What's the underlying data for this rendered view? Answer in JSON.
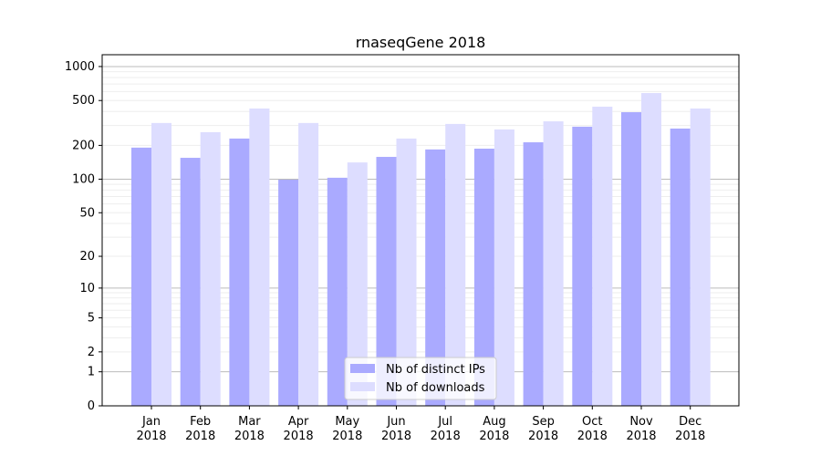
{
  "chart_data": {
    "type": "bar",
    "title": "rnaseqGene 2018",
    "xlabel": "",
    "ylabel": "",
    "yscale": "symlog",
    "ylim": [
      0,
      1300
    ],
    "yticks": [
      0,
      1,
      2,
      5,
      10,
      20,
      50,
      100,
      200,
      500,
      1000
    ],
    "grid": true,
    "legend_position": "bottom-center",
    "categories": [
      "Jan\n2018",
      "Feb\n2018",
      "Mar\n2018",
      "Apr\n2018",
      "May\n2018",
      "Jun\n2018",
      "Jul\n2018",
      "Aug\n2018",
      "Sep\n2018",
      "Oct\n2018",
      "Nov\n2018",
      "Dec\n2018"
    ],
    "series": [
      {
        "name": "Nb of distinct IPs",
        "color": "#aaaaff",
        "values": [
          191,
          155,
          230,
          99,
          103,
          158,
          184,
          187,
          213,
          293,
          394,
          282
        ]
      },
      {
        "name": "Nb of downloads",
        "color": "#ddddff",
        "values": [
          316,
          262,
          425,
          316,
          141,
          230,
          310,
          277,
          327,
          441,
          582,
          425
        ]
      }
    ]
  }
}
